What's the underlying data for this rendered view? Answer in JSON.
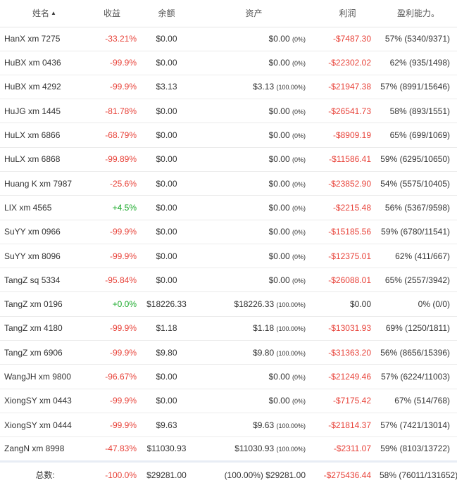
{
  "headers": {
    "name": "姓名",
    "return": "收益",
    "balance": "余额",
    "asset": "资产",
    "profit": "利润",
    "rate": "盈利能力。"
  },
  "accent": {
    "negative": "#e8433a",
    "positive": "#1aaa2a"
  },
  "rows": [
    {
      "name": "HanX xm 7275",
      "ret": "-33.21%",
      "ret_sign": "neg",
      "bal": "$0.00",
      "asset": "$0.00",
      "asset_pct": "(0%)",
      "profit": "-$7487.30",
      "profit_sign": "neg",
      "rate": "57% (5340/9371)"
    },
    {
      "name": "HuBX xm 0436",
      "ret": "-99.9%",
      "ret_sign": "neg",
      "bal": "$0.00",
      "asset": "$0.00",
      "asset_pct": "(0%)",
      "profit": "-$22302.02",
      "profit_sign": "neg",
      "rate": "62% (935/1498)"
    },
    {
      "name": "HuBX xm 4292",
      "ret": "-99.9%",
      "ret_sign": "neg",
      "bal": "$3.13",
      "asset": "$3.13",
      "asset_pct": "(100.00%)",
      "profit": "-$21947.38",
      "profit_sign": "neg",
      "rate": "57% (8991/15646)"
    },
    {
      "name": "HuJG xm 1445",
      "ret": "-81.78%",
      "ret_sign": "neg",
      "bal": "$0.00",
      "asset": "$0.00",
      "asset_pct": "(0%)",
      "profit": "-$26541.73",
      "profit_sign": "neg",
      "rate": "58% (893/1551)"
    },
    {
      "name": "HuLX xm 6866",
      "ret": "-68.79%",
      "ret_sign": "neg",
      "bal": "$0.00",
      "asset": "$0.00",
      "asset_pct": "(0%)",
      "profit": "-$8909.19",
      "profit_sign": "neg",
      "rate": "65% (699/1069)"
    },
    {
      "name": "HuLX xm 6868",
      "ret": "-99.89%",
      "ret_sign": "neg",
      "bal": "$0.00",
      "asset": "$0.00",
      "asset_pct": "(0%)",
      "profit": "-$11586.41",
      "profit_sign": "neg",
      "rate": "59% (6295/10650)"
    },
    {
      "name": "Huang K xm 7987",
      "ret": "-25.6%",
      "ret_sign": "neg",
      "bal": "$0.00",
      "asset": "$0.00",
      "asset_pct": "(0%)",
      "profit": "-$23852.90",
      "profit_sign": "neg",
      "rate": "54% (5575/10405)"
    },
    {
      "name": "LIX xm 4565",
      "ret": "+4.5%",
      "ret_sign": "pos",
      "bal": "$0.00",
      "asset": "$0.00",
      "asset_pct": "(0%)",
      "profit": "-$2215.48",
      "profit_sign": "neg",
      "rate": "56% (5367/9598)"
    },
    {
      "name": "SuYY xm 0966",
      "ret": "-99.9%",
      "ret_sign": "neg",
      "bal": "$0.00",
      "asset": "$0.00",
      "asset_pct": "(0%)",
      "profit": "-$15185.56",
      "profit_sign": "neg",
      "rate": "59% (6780/11541)"
    },
    {
      "name": "SuYY xm 8096",
      "ret": "-99.9%",
      "ret_sign": "neg",
      "bal": "$0.00",
      "asset": "$0.00",
      "asset_pct": "(0%)",
      "profit": "-$12375.01",
      "profit_sign": "neg",
      "rate": "62% (411/667)"
    },
    {
      "name": "TangZ sq 5334",
      "ret": "-95.84%",
      "ret_sign": "neg",
      "bal": "$0.00",
      "asset": "$0.00",
      "asset_pct": "(0%)",
      "profit": "-$26088.01",
      "profit_sign": "neg",
      "rate": "65% (2557/3942)"
    },
    {
      "name": "TangZ xm 0196",
      "ret": "+0.0%",
      "ret_sign": "pos",
      "bal": "$18226.33",
      "asset": "$18226.33",
      "asset_pct": "(100.00%)",
      "profit": "$0.00",
      "profit_sign": "none",
      "rate": "0% (0/0)"
    },
    {
      "name": "TangZ xm 4180",
      "ret": "-99.9%",
      "ret_sign": "neg",
      "bal": "$1.18",
      "asset": "$1.18",
      "asset_pct": "(100.00%)",
      "profit": "-$13031.93",
      "profit_sign": "neg",
      "rate": "69% (1250/1811)"
    },
    {
      "name": "TangZ xm 6906",
      "ret": "-99.9%",
      "ret_sign": "neg",
      "bal": "$9.80",
      "asset": "$9.80",
      "asset_pct": "(100.00%)",
      "profit": "-$31363.20",
      "profit_sign": "neg",
      "rate": "56% (8656/15396)"
    },
    {
      "name": "WangJH xm 9800",
      "ret": "-96.67%",
      "ret_sign": "neg",
      "bal": "$0.00",
      "asset": "$0.00",
      "asset_pct": "(0%)",
      "profit": "-$21249.46",
      "profit_sign": "neg",
      "rate": "57% (6224/11003)"
    },
    {
      "name": "XiongSY xm 0443",
      "ret": "-99.9%",
      "ret_sign": "neg",
      "bal": "$0.00",
      "asset": "$0.00",
      "asset_pct": "(0%)",
      "profit": "-$7175.42",
      "profit_sign": "neg",
      "rate": "67% (514/768)"
    },
    {
      "name": "XiongSY xm 0444",
      "ret": "-99.9%",
      "ret_sign": "neg",
      "bal": "$9.63",
      "asset": "$9.63",
      "asset_pct": "(100.00%)",
      "profit": "-$21814.37",
      "profit_sign": "neg",
      "rate": "57% (7421/13014)"
    },
    {
      "name": "ZangN xm 8998",
      "ret": "-47.83%",
      "ret_sign": "neg",
      "bal": "$11030.93",
      "asset": "$11030.93",
      "asset_pct": "(100.00%)",
      "profit": "-$2311.07",
      "profit_sign": "neg",
      "rate": "59% (8103/13722)"
    }
  ],
  "total": {
    "label": "总数:",
    "ret": "-100.0%",
    "bal": "$29281.00",
    "asset": "(100.00%) $29281.00",
    "profit": "-$275436.44",
    "rate": "58% (76011/131652)"
  }
}
